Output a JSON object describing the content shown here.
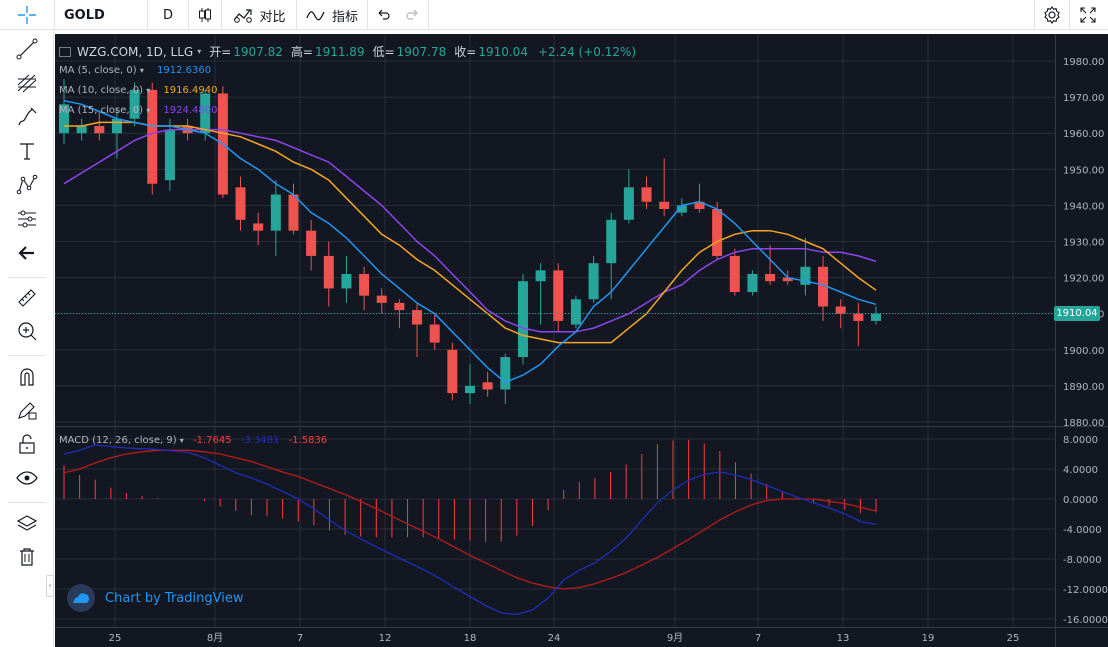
{
  "topbar": {
    "symbol": "GOLD",
    "interval": "D",
    "compare_label": "对比",
    "indicators_label": "指标"
  },
  "legend": {
    "title": "WZG.COM, 1D, LLG",
    "open_label": "开=",
    "open": "1907.82",
    "high_label": "高=",
    "high": "1911.89",
    "low_label": "低=",
    "low": "1907.78",
    "close_label": "收=",
    "close": "1910.04",
    "change": "+2.24 (+0.12%)"
  },
  "ma_legends": [
    {
      "label": "MA (5, close, 0)",
      "value": "1912.6360",
      "color": "#2196f3"
    },
    {
      "label": "MA (10, close, 0)",
      "value": "1916.4940",
      "color": "#f6a623"
    },
    {
      "label": "MA (15, close, 0)",
      "value": "1924.4800",
      "color": "#8e44ef"
    }
  ],
  "macd_legend": {
    "label": "MACD (12, 26, close, 9)",
    "hist": "-1.7645",
    "macd": "-3.3481",
    "signal": "-1.5836",
    "hist_color": "#ff3b3b",
    "macd_color": "#1e2eb8",
    "signal_color": "#ff3b3b"
  },
  "price_axis_labels": [
    "1980.00",
    "1970.00",
    "1960.00",
    "1950.00",
    "1940.00",
    "1930.00",
    "1920.00",
    "1910.00",
    "1900.00",
    "1890.00",
    "1880.00"
  ],
  "macd_axis_labels": [
    "8.0000",
    "4.0000",
    "0.0000",
    "-4.0000",
    "-8.0000",
    "-12.0000",
    "-16.0000"
  ],
  "time_axis_labels": [
    "25",
    "8月",
    "7",
    "12",
    "18",
    "24",
    "9月",
    "7",
    "13",
    "19",
    "25"
  ],
  "last_price": "1910.04",
  "watermark": "Chart by TradingView",
  "colors": {
    "up": "#26a69a",
    "down": "#ef5350",
    "background": "#131722",
    "grid": "#2a2e39"
  },
  "chart_data": {
    "type": "candlestick",
    "price_range": [
      1878,
      1985
    ],
    "candles": [
      {
        "o": 1960,
        "h": 1975,
        "l": 1957,
        "c": 1968
      },
      {
        "o": 1960,
        "h": 1964,
        "l": 1958,
        "c": 1962
      },
      {
        "o": 1962,
        "h": 1966,
        "l": 1958,
        "c": 1960
      },
      {
        "o": 1960,
        "h": 1967,
        "l": 1953,
        "c": 1964
      },
      {
        "o": 1964,
        "h": 1974,
        "l": 1962,
        "c": 1972
      },
      {
        "o": 1972,
        "h": 1974,
        "l": 1943,
        "c": 1946
      },
      {
        "o": 1947,
        "h": 1964,
        "l": 1944,
        "c": 1961
      },
      {
        "o": 1962,
        "h": 1964,
        "l": 1958,
        "c": 1960
      },
      {
        "o": 1960,
        "h": 1972,
        "l": 1958,
        "c": 1971
      },
      {
        "o": 1971,
        "h": 1973,
        "l": 1942,
        "c": 1943
      },
      {
        "o": 1945,
        "h": 1948,
        "l": 1933,
        "c": 1936
      },
      {
        "o": 1935,
        "h": 1938,
        "l": 1929,
        "c": 1933
      },
      {
        "o": 1933,
        "h": 1947,
        "l": 1926,
        "c": 1943
      },
      {
        "o": 1943,
        "h": 1946,
        "l": 1932,
        "c": 1933
      },
      {
        "o": 1933,
        "h": 1936,
        "l": 1922,
        "c": 1926
      },
      {
        "o": 1926,
        "h": 1930,
        "l": 1912,
        "c": 1917
      },
      {
        "o": 1917,
        "h": 1926,
        "l": 1913,
        "c": 1921
      },
      {
        "o": 1921,
        "h": 1923,
        "l": 1911,
        "c": 1915
      },
      {
        "o": 1915,
        "h": 1917,
        "l": 1910,
        "c": 1913
      },
      {
        "o": 1913,
        "h": 1914,
        "l": 1906,
        "c": 1911
      },
      {
        "o": 1911,
        "h": 1913,
        "l": 1898,
        "c": 1907
      },
      {
        "o": 1907,
        "h": 1910,
        "l": 1900,
        "c": 1902
      },
      {
        "o": 1900,
        "h": 1902,
        "l": 1886,
        "c": 1888
      },
      {
        "o": 1888,
        "h": 1896,
        "l": 1885,
        "c": 1890
      },
      {
        "o": 1891,
        "h": 1894,
        "l": 1887,
        "c": 1889
      },
      {
        "o": 1889,
        "h": 1899,
        "l": 1885,
        "c": 1898
      },
      {
        "o": 1898,
        "h": 1921,
        "l": 1896,
        "c": 1919
      },
      {
        "o": 1919,
        "h": 1924,
        "l": 1907,
        "c": 1922
      },
      {
        "o": 1922,
        "h": 1924,
        "l": 1905,
        "c": 1908
      },
      {
        "o": 1907,
        "h": 1915,
        "l": 1906,
        "c": 1914
      },
      {
        "o": 1914,
        "h": 1926,
        "l": 1913,
        "c": 1924
      },
      {
        "o": 1924,
        "h": 1938,
        "l": 1914,
        "c": 1936
      },
      {
        "o": 1936,
        "h": 1950,
        "l": 1935,
        "c": 1945
      },
      {
        "o": 1945,
        "h": 1948,
        "l": 1939,
        "c": 1941
      },
      {
        "o": 1941,
        "h": 1953,
        "l": 1937,
        "c": 1939
      },
      {
        "o": 1938,
        "h": 1942,
        "l": 1937,
        "c": 1940
      },
      {
        "o": 1941,
        "h": 1946,
        "l": 1938,
        "c": 1939
      },
      {
        "o": 1939,
        "h": 1941,
        "l": 1925,
        "c": 1926
      },
      {
        "o": 1926,
        "h": 1928,
        "l": 1915,
        "c": 1916
      },
      {
        "o": 1916,
        "h": 1922,
        "l": 1915,
        "c": 1921
      },
      {
        "o": 1921,
        "h": 1929,
        "l": 1918,
        "c": 1919
      },
      {
        "o": 1920,
        "h": 1922,
        "l": 1918,
        "c": 1919
      },
      {
        "o": 1918,
        "h": 1931,
        "l": 1915,
        "c": 1923
      },
      {
        "o": 1923,
        "h": 1926,
        "l": 1908,
        "c": 1912
      },
      {
        "o": 1912,
        "h": 1914,
        "l": 1906,
        "c": 1910
      },
      {
        "o": 1910,
        "h": 1913,
        "l": 1901,
        "c": 1908
      },
      {
        "o": 1908,
        "h": 1912,
        "l": 1907,
        "c": 1910
      }
    ],
    "ma5": [
      1969,
      1968,
      1966,
      1964,
      1963,
      1962,
      1962,
      1961,
      1960,
      1957,
      1953,
      1950,
      1946,
      1943,
      1938,
      1935,
      1931,
      1926,
      1921,
      1917,
      1913,
      1910,
      1905,
      1900,
      1895,
      1891,
      1893,
      1896,
      1901,
      1905,
      1912,
      1916,
      1922,
      1928,
      1934,
      1940,
      1941,
      1939,
      1935,
      1930,
      1925,
      1920,
      1919,
      1918,
      1916,
      1914,
      1912.6
    ],
    "ma10": [
      1962,
      1962,
      1963,
      1963,
      1963,
      1962,
      1962,
      1962,
      1961,
      1960,
      1959,
      1957,
      1955,
      1952,
      1950,
      1947,
      1942,
      1937,
      1932,
      1929,
      1925,
      1922,
      1918,
      1914,
      1910,
      1906,
      1904,
      1903,
      1902,
      1902,
      1902,
      1902,
      1906,
      1910,
      1916,
      1922,
      1927,
      1930,
      1932,
      1933,
      1933,
      1932,
      1930,
      1928,
      1924,
      1920,
      1916.5
    ],
    "ma15": [
      1946,
      1949,
      1952,
      1955,
      1958,
      1960,
      1961,
      1961,
      1961,
      1961,
      1960,
      1959,
      1958,
      1956,
      1954,
      1952,
      1948,
      1944,
      1940,
      1935,
      1930,
      1926,
      1921,
      1916,
      1911,
      1908,
      1906,
      1905,
      1905,
      1905,
      1906,
      1908,
      1910,
      1913,
      1916,
      1918,
      1922,
      1925,
      1927,
      1928,
      1928,
      1928,
      1928,
      1927,
      1927,
      1926,
      1924.5
    ],
    "macd_range": [
      -17,
      9
    ],
    "macd_line": [
      6.0,
      6.5,
      7.2,
      7.0,
      6.8,
      6.7,
      6.6,
      6.4,
      6.2,
      5.5,
      4.5,
      3.5,
      2.8,
      2.0,
      1.0,
      0.0,
      -1.3,
      -2.8,
      -4.2,
      -5.3,
      -6.4,
      -7.4,
      -8.4,
      -9.4,
      -10.5,
      -11.8,
      -13.0,
      -14.2,
      -15.2,
      -15.4,
      -14.8,
      -13.2,
      -10.8,
      -9.5,
      -8.5,
      -7.0,
      -5.2,
      -2.8,
      -0.5,
      1.2,
      2.5,
      3.3,
      3.6,
      3.2,
      2.6,
      1.8,
      1.0,
      0.2,
      -0.5,
      -1.2,
      -2.0,
      -3.0,
      -3.4
    ],
    "signal_line": [
      3.5,
      4.0,
      4.8,
      5.5,
      6.0,
      6.3,
      6.5,
      6.5,
      6.5,
      6.3,
      6.0,
      5.5,
      5.0,
      4.3,
      3.6,
      3.0,
      2.2,
      1.4,
      0.6,
      -0.3,
      -1.3,
      -2.3,
      -3.3,
      -4.3,
      -5.3,
      -6.4,
      -7.5,
      -8.5,
      -9.5,
      -10.5,
      -11.2,
      -11.7,
      -12.0,
      -11.8,
      -11.3,
      -10.6,
      -9.8,
      -8.8,
      -7.8,
      -6.6,
      -5.4,
      -4.1,
      -2.8,
      -1.7,
      -0.8,
      -0.2,
      0.0,
      0.0,
      0.0,
      -0.3,
      -0.6,
      -1.1,
      -1.6
    ],
    "histogram": [
      4.5,
      3.2,
      2.6,
      1.5,
      0.8,
      0.4,
      0.1,
      0.0,
      0.0,
      -0.3,
      -1.0,
      -1.6,
      -2.2,
      -2.3,
      -2.6,
      -3.0,
      -3.5,
      -4.2,
      -4.8,
      -5.0,
      -5.1,
      -5.1,
      -5.1,
      -5.1,
      -5.2,
      -5.4,
      -5.5,
      -5.7,
      -5.7,
      -4.9,
      -3.6,
      -1.5,
      1.2,
      2.3,
      2.8,
      3.6,
      4.6,
      6.0,
      7.3,
      7.8,
      7.9,
      7.4,
      6.4,
      4.9,
      3.4,
      2.0,
      1.0,
      0.2,
      -0.5,
      -0.9,
      -1.4,
      -1.9,
      -1.8
    ]
  }
}
